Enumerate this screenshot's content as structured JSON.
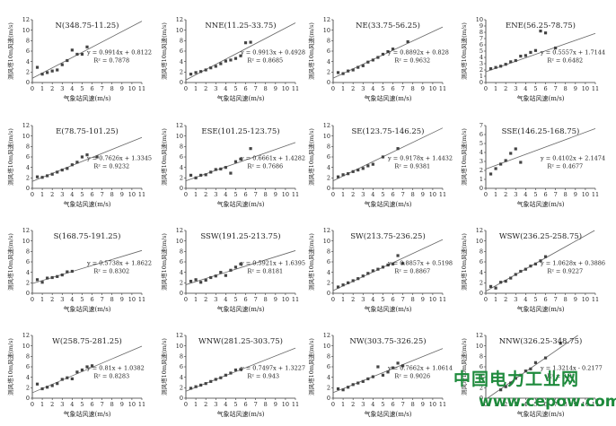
{
  "watermark": {
    "line1": "中国电力工业网",
    "line2": "www.cepow.com"
  },
  "chart_data": [
    {
      "type": "scatter",
      "title": "N(348.75-11.25)",
      "xlabel": "气象站风速(m/s)",
      "ylabel": "测风塔10m风速(m/s)",
      "xlim": [
        0,
        11
      ],
      "ylim": [
        0,
        12
      ],
      "yticks": [
        0,
        2,
        4,
        6,
        8,
        10,
        12
      ],
      "equation": "y = 0.9914x + 0.8122",
      "r2": "R² = 0.7878",
      "slope": 0.9914,
      "intercept": 0.8122,
      "points": [
        [
          0.5,
          2.9
        ],
        [
          1,
          1.6
        ],
        [
          1.5,
          1.9
        ],
        [
          2,
          2.2
        ],
        [
          2.5,
          2.4
        ],
        [
          3,
          3.4
        ],
        [
          3.5,
          4.2
        ],
        [
          4,
          6.2
        ],
        [
          4.5,
          5.4
        ],
        [
          5,
          5.4
        ],
        [
          5.5,
          6.8
        ]
      ]
    },
    {
      "type": "scatter",
      "title": "NNE(11.25-33.75)",
      "xlabel": "气象站风速(m/s)",
      "ylabel": "测风塔10m风速(m/s)",
      "xlim": [
        0,
        11
      ],
      "ylim": [
        0,
        12
      ],
      "yticks": [
        0,
        2,
        4,
        6,
        8,
        10,
        12
      ],
      "equation": "y = 0.9913x + 0.4928",
      "r2": "R² = 0.8685",
      "slope": 0.9913,
      "intercept": 0.4928,
      "points": [
        [
          0.5,
          1.6
        ],
        [
          1,
          1.9
        ],
        [
          1.5,
          2.1
        ],
        [
          2,
          2.4
        ],
        [
          2.5,
          2.8
        ],
        [
          3,
          3.1
        ],
        [
          3.5,
          3.6
        ],
        [
          4,
          4.1
        ],
        [
          4.5,
          4.3
        ],
        [
          5,
          4.6
        ],
        [
          5.5,
          5.1
        ],
        [
          6,
          7.6
        ],
        [
          6.5,
          7.7
        ]
      ]
    },
    {
      "type": "scatter",
      "title": "NE(33.75-56.25)",
      "xlabel": "气象站风速(m/s)",
      "ylabel": "测风塔10m风速(m/s)",
      "xlim": [
        0,
        11
      ],
      "ylim": [
        0,
        12
      ],
      "yticks": [
        0,
        2,
        4,
        6,
        8,
        10,
        12
      ],
      "equation": "y = 0.8892x + 0.828",
      "r2": "R² = 0.9632",
      "slope": 0.8892,
      "intercept": 0.828,
      "points": [
        [
          0.5,
          1.9
        ],
        [
          1,
          1.7
        ],
        [
          1.5,
          2.2
        ],
        [
          2,
          2.4
        ],
        [
          2.5,
          2.9
        ],
        [
          3,
          3.2
        ],
        [
          3.5,
          3.9
        ],
        [
          4,
          4.3
        ],
        [
          4.5,
          4.8
        ],
        [
          5,
          5.4
        ],
        [
          5.5,
          5.9
        ],
        [
          6,
          6.4
        ],
        [
          7.5,
          7.8
        ]
      ]
    },
    {
      "type": "scatter",
      "title": "ENE(56.25-78.75)",
      "xlabel": "气象站风速(m/s)",
      "ylabel": "测风塔10m风速(m/s)",
      "xlim": [
        0,
        11
      ],
      "ylim": [
        0,
        10
      ],
      "yticks": [
        0,
        1,
        2,
        3,
        4,
        5,
        6,
        7,
        8,
        9,
        10
      ],
      "equation": "y = 0.5557x + 1.7144",
      "r2": "R² = 0.6482",
      "slope": 0.5557,
      "intercept": 1.7144,
      "points": [
        [
          0.5,
          2.2
        ],
        [
          1,
          2.4
        ],
        [
          1.5,
          2.6
        ],
        [
          2,
          2.9
        ],
        [
          2.5,
          3.3
        ],
        [
          3,
          3.5
        ],
        [
          3.5,
          4.2
        ],
        [
          4,
          4.3
        ],
        [
          4.5,
          4.8
        ],
        [
          5,
          5.1
        ],
        [
          5.5,
          8.2
        ],
        [
          6,
          7.9
        ],
        [
          7,
          5.5
        ]
      ]
    },
    {
      "type": "scatter",
      "title": "E(78.75-101.25)",
      "xlabel": "气象站风速(m/s)",
      "ylabel": "测风塔10m风速(m/s)",
      "xlim": [
        0,
        11
      ],
      "ylim": [
        0,
        12
      ],
      "yticks": [
        0,
        2,
        4,
        6,
        8,
        10,
        12
      ],
      "equation": "y = 0.7626x + 1.3345",
      "r2": "R² = 0.9232",
      "slope": 0.7626,
      "intercept": 1.3345,
      "points": [
        [
          0.5,
          2.2
        ],
        [
          1,
          2.1
        ],
        [
          1.5,
          2.4
        ],
        [
          2,
          2.7
        ],
        [
          2.5,
          3.1
        ],
        [
          3,
          3.5
        ],
        [
          3.5,
          3.8
        ],
        [
          4,
          4.5
        ],
        [
          4.5,
          5.0
        ],
        [
          5,
          6.0
        ],
        [
          5.5,
          6.4
        ],
        [
          6.5,
          6.0
        ]
      ]
    },
    {
      "type": "scatter",
      "title": "ESE(101.25-123.75)",
      "xlabel": "气象站风速(m/s)",
      "ylabel": "测风塔10m风速(m/s)",
      "xlim": [
        0,
        11
      ],
      "ylim": [
        0,
        12
      ],
      "yticks": [
        0,
        2,
        4,
        6,
        8,
        10,
        12
      ],
      "equation": "y = 0.6661x + 1.4282",
      "r2": "R² = 0.7686",
      "slope": 0.6661,
      "intercept": 1.4282,
      "points": [
        [
          0.5,
          2.5
        ],
        [
          1,
          2.0
        ],
        [
          1.5,
          2.5
        ],
        [
          2,
          2.6
        ],
        [
          2.5,
          3.1
        ],
        [
          3,
          3.6
        ],
        [
          3.5,
          3.7
        ],
        [
          4,
          4.0
        ],
        [
          4.5,
          2.9
        ],
        [
          5,
          5.1
        ],
        [
          5.5,
          5.6
        ],
        [
          6.5,
          7.6
        ]
      ]
    },
    {
      "type": "scatter",
      "title": "SE(123.75-146.25)",
      "xlabel": "气象站风速(m/s)",
      "ylabel": "测风塔10m风速(m/s)",
      "xlim": [
        0,
        11
      ],
      "ylim": [
        0,
        12
      ],
      "yticks": [
        0,
        2,
        4,
        6,
        8,
        10,
        12
      ],
      "equation": "y = 0.9178x + 1.4432",
      "r2": "R² = 0.9381",
      "slope": 0.9178,
      "intercept": 1.4432,
      "points": [
        [
          0.5,
          2.2
        ],
        [
          1,
          2.6
        ],
        [
          1.5,
          2.8
        ],
        [
          2,
          3.2
        ],
        [
          2.5,
          3.5
        ],
        [
          3,
          3.8
        ],
        [
          3.5,
          4.3
        ],
        [
          4,
          4.6
        ],
        [
          5,
          6.0
        ],
        [
          6.5,
          7.6
        ]
      ]
    },
    {
      "type": "scatter",
      "title": "SSE(146.25-168.75)",
      "xlabel": "气象站风速(m/s)",
      "ylabel": "测风塔10m风速(m/s)",
      "xlim": [
        0,
        11
      ],
      "ylim": [
        0,
        7
      ],
      "yticks": [
        0,
        1,
        2,
        3,
        4,
        5,
        6,
        7
      ],
      "equation": "y = 0.4102x + 2.1474",
      "r2": "R² = 0.4677",
      "slope": 0.4102,
      "intercept": 2.1474,
      "points": [
        [
          0.5,
          1.6
        ],
        [
          1,
          2.2
        ],
        [
          1.5,
          2.7
        ],
        [
          2,
          3.1
        ],
        [
          2.5,
          3.9
        ],
        [
          3,
          4.4
        ],
        [
          3.5,
          2.9
        ]
      ]
    },
    {
      "type": "scatter",
      "title": "S(168.75-191.25)",
      "xlabel": "气象站风速(m/s)",
      "ylabel": "测风塔10m风速(m/s)",
      "xlim": [
        0,
        11
      ],
      "ylim": [
        0,
        12
      ],
      "yticks": [
        0,
        2,
        4,
        6,
        8,
        10,
        12
      ],
      "equation": "y = 0.5738x + 1.8622",
      "r2": "R² = 0.8302",
      "slope": 0.5738,
      "intercept": 1.8622,
      "points": [
        [
          0.5,
          2.6
        ],
        [
          1,
          2.1
        ],
        [
          1.5,
          2.9
        ],
        [
          2,
          3.0
        ],
        [
          2.5,
          3.2
        ],
        [
          3,
          3.5
        ],
        [
          3.5,
          4.1
        ],
        [
          4,
          4.2
        ]
      ]
    },
    {
      "type": "scatter",
      "title": "SSW(191.25-213.75)",
      "xlabel": "气象站风速(m/s)",
      "ylabel": "测风塔10m风速(m/s)",
      "xlim": [
        0,
        11
      ],
      "ylim": [
        0,
        12
      ],
      "yticks": [
        0,
        2,
        4,
        6,
        8,
        10,
        12
      ],
      "equation": "y = 0.5921x + 1.6395",
      "r2": "R² = 0.8181",
      "slope": 0.5921,
      "intercept": 1.6395,
      "points": [
        [
          0.5,
          2.3
        ],
        [
          1,
          2.6
        ],
        [
          1.5,
          2.1
        ],
        [
          2,
          2.5
        ],
        [
          2.5,
          3.0
        ],
        [
          3,
          3.3
        ],
        [
          3.5,
          4.0
        ],
        [
          4,
          3.4
        ],
        [
          4.5,
          4.4
        ],
        [
          5,
          5.0
        ],
        [
          5.5,
          5.6
        ]
      ]
    },
    {
      "type": "scatter",
      "title": "SW(213.75-236.25)",
      "xlabel": "气象站风速(m/s)",
      "ylabel": "测风塔10m风速(m/s)",
      "xlim": [
        0,
        11
      ],
      "ylim": [
        0,
        12
      ],
      "yticks": [
        0,
        2,
        4,
        6,
        8,
        10,
        12
      ],
      "equation": "y = 0.8857x + 0.5198",
      "r2": "R² = 0.8867",
      "slope": 0.8857,
      "intercept": 0.5198,
      "points": [
        [
          0.5,
          1.2
        ],
        [
          1,
          1.6
        ],
        [
          1.5,
          2.0
        ],
        [
          2,
          2.4
        ],
        [
          2.5,
          2.8
        ],
        [
          3,
          3.3
        ],
        [
          3.5,
          3.8
        ],
        [
          4,
          4.3
        ],
        [
          4.5,
          4.6
        ],
        [
          5,
          5.0
        ],
        [
          5.5,
          5.4
        ],
        [
          6,
          5.6
        ],
        [
          6.5,
          7.2
        ],
        [
          7,
          5.7
        ]
      ]
    },
    {
      "type": "scatter",
      "title": "WSW(236.25-258.75)",
      "xlabel": "气象站风速(m/s)",
      "ylabel": "测风塔10m风速(m/s)",
      "xlim": [
        0,
        11
      ],
      "ylim": [
        0,
        12
      ],
      "yticks": [
        0,
        2,
        4,
        6,
        8,
        10,
        12
      ],
      "equation": "y = 1.0628x + 0.3886",
      "r2": "R² = 0.9227",
      "slope": 1.0628,
      "intercept": 0.3886,
      "points": [
        [
          0.5,
          1.3
        ],
        [
          1,
          1.0
        ],
        [
          1.5,
          2.1
        ],
        [
          2,
          2.3
        ],
        [
          2.5,
          2.9
        ],
        [
          3,
          3.6
        ],
        [
          3.5,
          4.2
        ],
        [
          4,
          4.6
        ],
        [
          4.5,
          5.2
        ],
        [
          5,
          5.6
        ],
        [
          5.5,
          6.2
        ],
        [
          6,
          7.0
        ]
      ]
    },
    {
      "type": "scatter",
      "title": "W(258.75-281.25)",
      "xlabel": "气象站风速(m/s)",
      "ylabel": "测风塔10m风速(m/s)",
      "xlim": [
        0,
        11
      ],
      "ylim": [
        0,
        12
      ],
      "yticks": [
        0,
        2,
        4,
        6,
        8,
        10,
        12
      ],
      "equation": "y = 0.81x + 1.0382",
      "r2": "R² = 0.8283",
      "slope": 0.81,
      "intercept": 1.0382,
      "points": [
        [
          0.5,
          2.7
        ],
        [
          1,
          1.8
        ],
        [
          1.5,
          2.1
        ],
        [
          2,
          2.4
        ],
        [
          2.5,
          2.8
        ],
        [
          3,
          3.6
        ],
        [
          3.5,
          3.9
        ],
        [
          4,
          3.7
        ],
        [
          4.5,
          5.0
        ],
        [
          5,
          5.4
        ],
        [
          5.5,
          6.0
        ],
        [
          6,
          6.2
        ]
      ]
    },
    {
      "type": "scatter",
      "title": "WNW(281.25-303.75)",
      "xlabel": "气象站风速(m/s)",
      "ylabel": "测风塔10m风速(m/s)",
      "xlim": [
        0,
        11
      ],
      "ylim": [
        0,
        12
      ],
      "yticks": [
        0,
        2,
        4,
        6,
        8,
        10,
        12
      ],
      "equation": "y = 0.7497x + 1.3227",
      "r2": "R² = 0.943",
      "slope": 0.7497,
      "intercept": 1.3227,
      "points": [
        [
          0.5,
          1.9
        ],
        [
          1,
          2.2
        ],
        [
          1.5,
          2.5
        ],
        [
          2,
          2.8
        ],
        [
          2.5,
          3.2
        ],
        [
          3,
          3.6
        ],
        [
          3.5,
          3.9
        ],
        [
          4,
          4.4
        ],
        [
          4.5,
          4.8
        ],
        [
          5,
          5.4
        ],
        [
          5.5,
          5.5
        ]
      ]
    },
    {
      "type": "scatter",
      "title": "NW(303.75-326.25)",
      "xlabel": "气象站风速(m/s)",
      "ylabel": "测风塔10m风速(m/s)",
      "xlim": [
        0,
        11
      ],
      "ylim": [
        0,
        12
      ],
      "yticks": [
        0,
        2,
        4,
        6,
        8,
        10,
        12
      ],
      "equation": "y = 0.7662x + 1.0614",
      "r2": "R² = 0.9026",
      "slope": 0.7662,
      "intercept": 1.0614,
      "points": [
        [
          0.5,
          1.8
        ],
        [
          1,
          1.6
        ],
        [
          1.5,
          2.1
        ],
        [
          2,
          2.6
        ],
        [
          2.5,
          2.9
        ],
        [
          3,
          3.2
        ],
        [
          3.5,
          3.7
        ],
        [
          4,
          4.1
        ],
        [
          4.5,
          6.0
        ],
        [
          5,
          4.4
        ],
        [
          5.5,
          5.0
        ],
        [
          6,
          5.8
        ],
        [
          6.5,
          6.7
        ],
        [
          7,
          6.2
        ]
      ]
    },
    {
      "type": "scatter",
      "title": "NNW(326.25-348.75)",
      "xlabel": "气象站风速(m/s)",
      "ylabel": "测风塔10m风速(m/s)",
      "xlim": [
        0,
        11
      ],
      "ylim": [
        0,
        12
      ],
      "yticks": [
        0,
        2,
        4,
        6,
        8,
        10,
        12
      ],
      "equation": "y = 1.3214x - 0.2177",
      "r2": "R² = 0.9",
      "slope": 1.3214,
      "intercept": -0.2177,
      "points": [
        [
          1.5,
          1.6
        ],
        [
          2,
          2.2
        ],
        [
          2.5,
          2.9
        ],
        [
          3,
          3.8
        ],
        [
          3.5,
          4.4
        ],
        [
          4,
          5.2
        ],
        [
          4.5,
          5.6
        ],
        [
          5,
          6.8
        ],
        [
          6,
          7.7
        ],
        [
          7.5,
          10.5
        ]
      ]
    }
  ]
}
